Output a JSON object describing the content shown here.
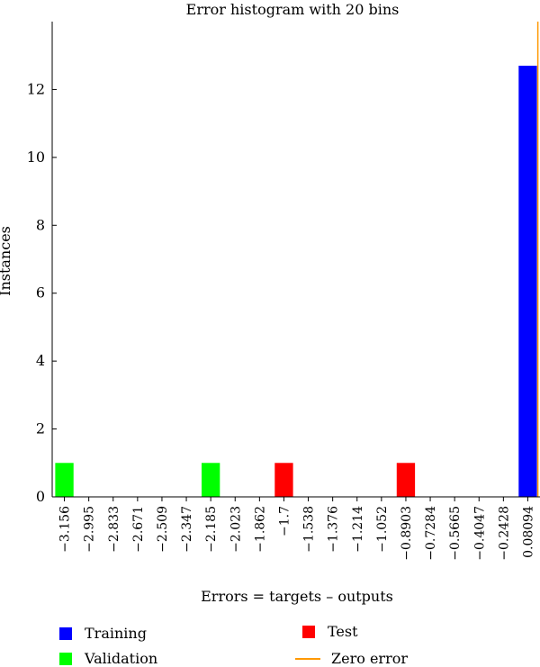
{
  "chart_data": {
    "type": "bar",
    "title": "Error histogram with 20 bins",
    "xlabel": "Errors = targets – outputs",
    "ylabel": "Instances",
    "categories": [
      "−3.156",
      "−2.995",
      "−2.833",
      "−2.671",
      "−2.509",
      "−2.347",
      "−2.185",
      "−2.023",
      "−1.862",
      "−1.7",
      "−1.538",
      "−1.376",
      "−1.214",
      "−1.052",
      "−0.8903",
      "−0.7284",
      "−0.5665",
      "−0.4047",
      "−0.2428",
      "0.08094"
    ],
    "series": [
      {
        "name": "Training",
        "color": "#0000ff",
        "values": [
          0,
          0,
          0,
          0,
          0,
          0,
          0,
          0,
          0,
          0,
          0,
          0,
          0,
          0,
          0,
          0,
          0,
          0,
          0,
          12.7
        ]
      },
      {
        "name": "Validation",
        "color": "#00ff00",
        "values": [
          1,
          0,
          0,
          0,
          0,
          0,
          1,
          0,
          0,
          0,
          0,
          0,
          0,
          0,
          0,
          0,
          0,
          0,
          0,
          0
        ]
      },
      {
        "name": "Test",
        "color": "#ff0000",
        "values": [
          0,
          0,
          0,
          0,
          0,
          0,
          0,
          0,
          0,
          1,
          0,
          0,
          0,
          0,
          1,
          0,
          0,
          0,
          0,
          0
        ]
      }
    ],
    "zero_error": {
      "name": "Zero error",
      "color": "#ff9900",
      "x": 0.08094
    },
    "yticks": [
      0,
      2,
      4,
      6,
      8,
      10,
      12
    ],
    "ylim": [
      0,
      14
    ],
    "grid": false,
    "legend_position": "bottom"
  }
}
